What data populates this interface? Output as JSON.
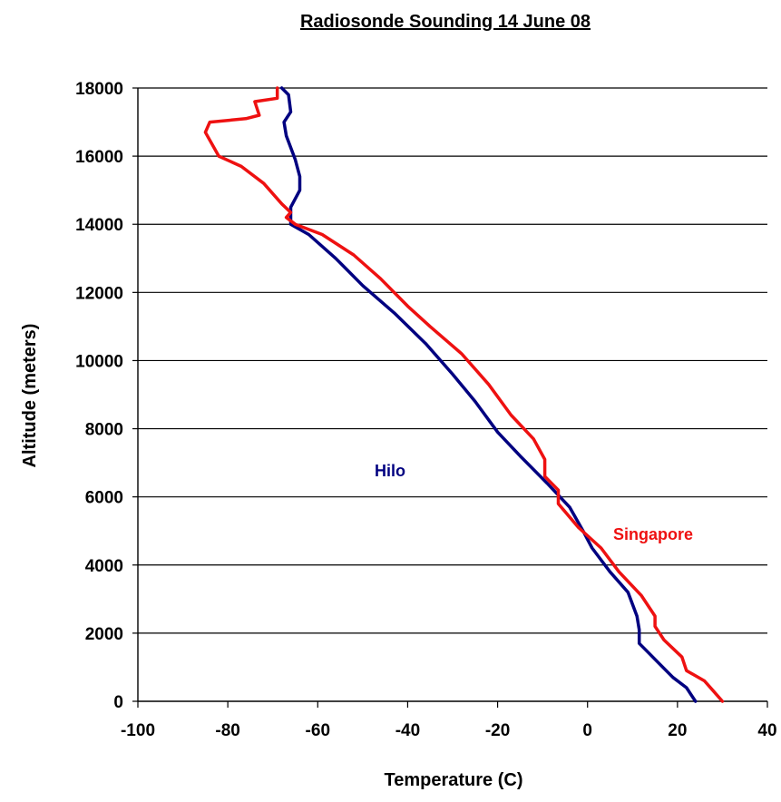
{
  "chart_data": {
    "type": "line",
    "title": "Radiosonde Sounding 14 June 08",
    "xlabel": "Temperature (C)",
    "ylabel": "Altitude (meters)",
    "xlim": [
      -100,
      40
    ],
    "ylim": [
      0,
      18000
    ],
    "xticks": [
      "-100",
      "-80",
      "-60",
      "-40",
      "-20",
      "0",
      "20",
      "40"
    ],
    "yticks": [
      "0",
      "2000",
      "4000",
      "6000",
      "8000",
      "10000",
      "12000",
      "14000",
      "16000",
      "18000"
    ],
    "grid": "horizontal",
    "legend": "inline labels",
    "series": [
      {
        "name": "Hilo",
        "color": "#000080",
        "points": [
          [
            24,
            0
          ],
          [
            22,
            400
          ],
          [
            19,
            700
          ],
          [
            16,
            1100
          ],
          [
            13,
            1500
          ],
          [
            11.5,
            1700
          ],
          [
            11.5,
            2100
          ],
          [
            11,
            2500
          ],
          [
            9,
            3200
          ],
          [
            5,
            3800
          ],
          [
            1,
            4500
          ],
          [
            -1,
            5000
          ],
          [
            -4,
            5700
          ],
          [
            -9,
            6400
          ],
          [
            -15,
            7200
          ],
          [
            -20,
            7900
          ],
          [
            -25,
            8800
          ],
          [
            -30,
            9600
          ],
          [
            -36,
            10500
          ],
          [
            -43,
            11400
          ],
          [
            -50,
            12200
          ],
          [
            -56,
            13000
          ],
          [
            -62,
            13700
          ],
          [
            -66,
            14000
          ],
          [
            -66,
            14500
          ],
          [
            -64,
            15000
          ],
          [
            -64,
            15400
          ],
          [
            -65,
            15900
          ],
          [
            -67,
            16600
          ],
          [
            -67.5,
            17000
          ],
          [
            -66,
            17300
          ],
          [
            -66.5,
            17800
          ],
          [
            -68,
            18000
          ]
        ]
      },
      {
        "name": "Singapore",
        "color": "#ee1111",
        "points": [
          [
            30,
            0
          ],
          [
            28,
            300
          ],
          [
            26,
            600
          ],
          [
            22,
            900
          ],
          [
            21,
            1300
          ],
          [
            17,
            1800
          ],
          [
            15,
            2200
          ],
          [
            15,
            2500
          ],
          [
            12,
            3100
          ],
          [
            7,
            3800
          ],
          [
            3,
            4500
          ],
          [
            -2,
            5100
          ],
          [
            -6.5,
            5800
          ],
          [
            -6.5,
            6200
          ],
          [
            -9.5,
            6600
          ],
          [
            -9.5,
            7100
          ],
          [
            -12,
            7700
          ],
          [
            -17,
            8400
          ],
          [
            -22,
            9300
          ],
          [
            -28,
            10200
          ],
          [
            -35,
            11000
          ],
          [
            -40,
            11600
          ],
          [
            -46,
            12400
          ],
          [
            -52,
            13100
          ],
          [
            -59,
            13700
          ],
          [
            -65,
            14000
          ],
          [
            -67,
            14200
          ],
          [
            -66,
            14350
          ],
          [
            -68,
            14600
          ],
          [
            -72,
            15200
          ],
          [
            -77,
            15700
          ],
          [
            -82,
            16000
          ],
          [
            -85,
            16700
          ],
          [
            -84,
            17000
          ],
          [
            -76,
            17100
          ],
          [
            -73,
            17200
          ],
          [
            -74,
            17600
          ],
          [
            -69,
            17700
          ],
          [
            -69,
            18000
          ]
        ]
      }
    ]
  }
}
